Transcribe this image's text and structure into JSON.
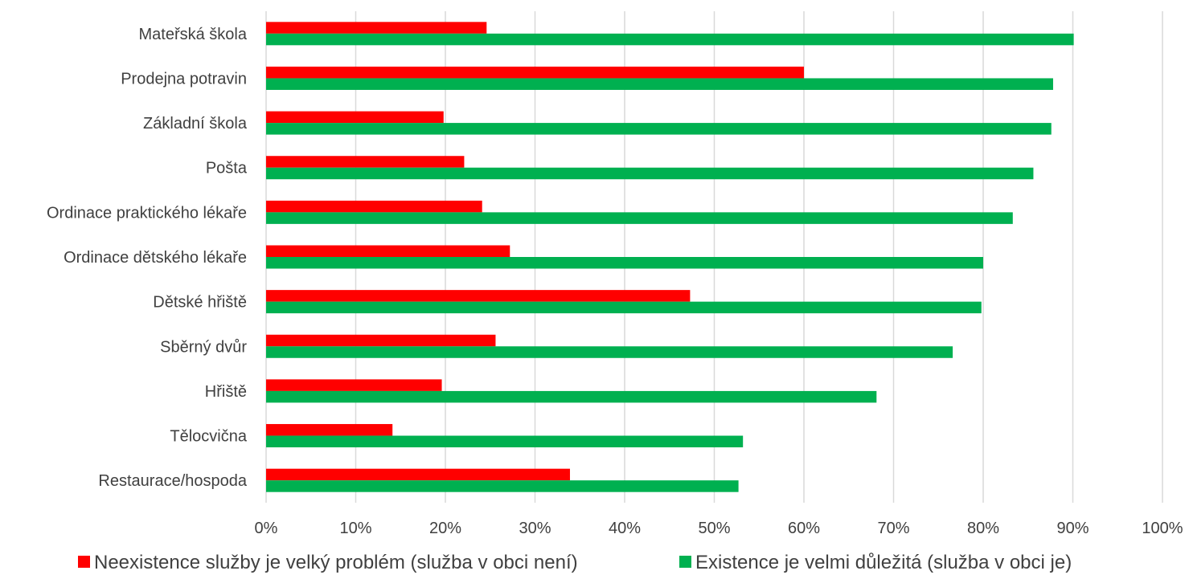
{
  "chart_data": {
    "type": "bar",
    "orientation": "horizontal",
    "categories": [
      "Mateřská škola",
      "Prodejna potravin",
      "Základní škola",
      "Pošta",
      "Ordinace praktického lékaře",
      "Ordinace dětského lékaře",
      "Dětské hřiště",
      "Sběrný dvůr",
      "Hřiště",
      "Tělocvična",
      "Restaurace/hospoda"
    ],
    "series": [
      {
        "name": "Neexistence služby je velký problém (služba v obci není)",
        "color": "#ff0000",
        "values": [
          24.6,
          60.0,
          19.8,
          22.1,
          24.1,
          27.2,
          47.3,
          25.6,
          19.6,
          14.1,
          33.9
        ]
      },
      {
        "name": "Existence je velmi důležitá (služba v obci je)",
        "color": "#00b050",
        "values": [
          90.1,
          87.8,
          87.6,
          85.6,
          83.3,
          80.0,
          79.8,
          76.6,
          68.1,
          53.2,
          52.7
        ]
      }
    ],
    "xlim": [
      0,
      100
    ],
    "x_ticks": [
      "0%",
      "10%",
      "20%",
      "30%",
      "40%",
      "50%",
      "60%",
      "70%",
      "80%",
      "90%",
      "100%"
    ],
    "xlabel": "",
    "ylabel": "",
    "grid": true,
    "legend_position": "bottom"
  },
  "colors": {
    "gridline": "#d9d9d9",
    "text": "#404040"
  }
}
